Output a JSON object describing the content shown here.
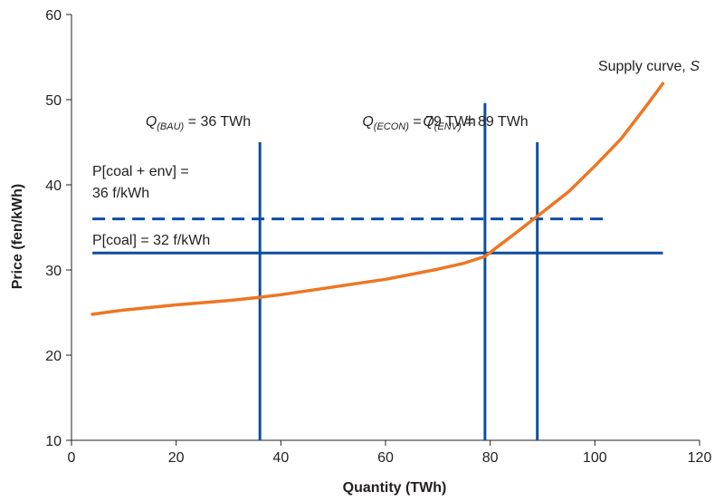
{
  "chart_data": {
    "type": "line",
    "title": "",
    "xlabel": "Quantity (TWh)",
    "ylabel": "Price (fen/kWh)",
    "xlim": [
      0,
      120
    ],
    "ylim": [
      10,
      60
    ],
    "x_ticks": [
      0,
      20,
      40,
      60,
      80,
      100,
      120
    ],
    "y_ticks": [
      10,
      20,
      30,
      40,
      50,
      60
    ],
    "grid": false,
    "colors": {
      "supply": "#ee7623",
      "lines": "#0d4ea1",
      "axis": "#231f20"
    },
    "series": [
      {
        "name": "Supply curve, S",
        "points": [
          [
            4,
            24.8
          ],
          [
            10,
            25.3
          ],
          [
            20,
            25.9
          ],
          [
            30,
            26.4
          ],
          [
            36,
            26.8
          ],
          [
            40,
            27.1
          ],
          [
            50,
            28.0
          ],
          [
            60,
            28.9
          ],
          [
            70,
            30.1
          ],
          [
            75,
            30.8
          ],
          [
            79,
            31.6
          ],
          [
            82,
            33.0
          ],
          [
            85,
            34.4
          ],
          [
            89,
            36.3
          ],
          [
            95,
            39.2
          ],
          [
            100,
            42.2
          ],
          [
            105,
            45.4
          ],
          [
            110,
            49.4
          ],
          [
            113,
            51.9
          ]
        ]
      }
    ],
    "vertical_lines": [
      {
        "x": 36,
        "y_top": 45,
        "label_main": "Q",
        "label_sub": "(BAU)",
        "label_rest": " = 36 TWh"
      },
      {
        "x": 79,
        "y_top": 49.6,
        "label_main": "Q",
        "label_sub": "(ECON)",
        "label_rest": " = 79 TWh"
      },
      {
        "x": 89,
        "y_top": 45,
        "label_main": "Q",
        "label_sub": "(ENV)",
        "label_rest": " = 89 TWh"
      }
    ],
    "horizontal_lines": [
      {
        "y": 32,
        "x_start": 4,
        "x_end": 113,
        "dashed": false,
        "label_lines": [
          "P[coal] = 32 f/kWh"
        ]
      },
      {
        "y": 36,
        "x_start": 4,
        "x_end": 102,
        "dashed": true,
        "label_lines": [
          "P[coal + env] =",
          "36 f/kWh"
        ]
      }
    ],
    "annotations": [
      {
        "text": "Supply curve, ",
        "italic_suffix": "S"
      }
    ]
  }
}
